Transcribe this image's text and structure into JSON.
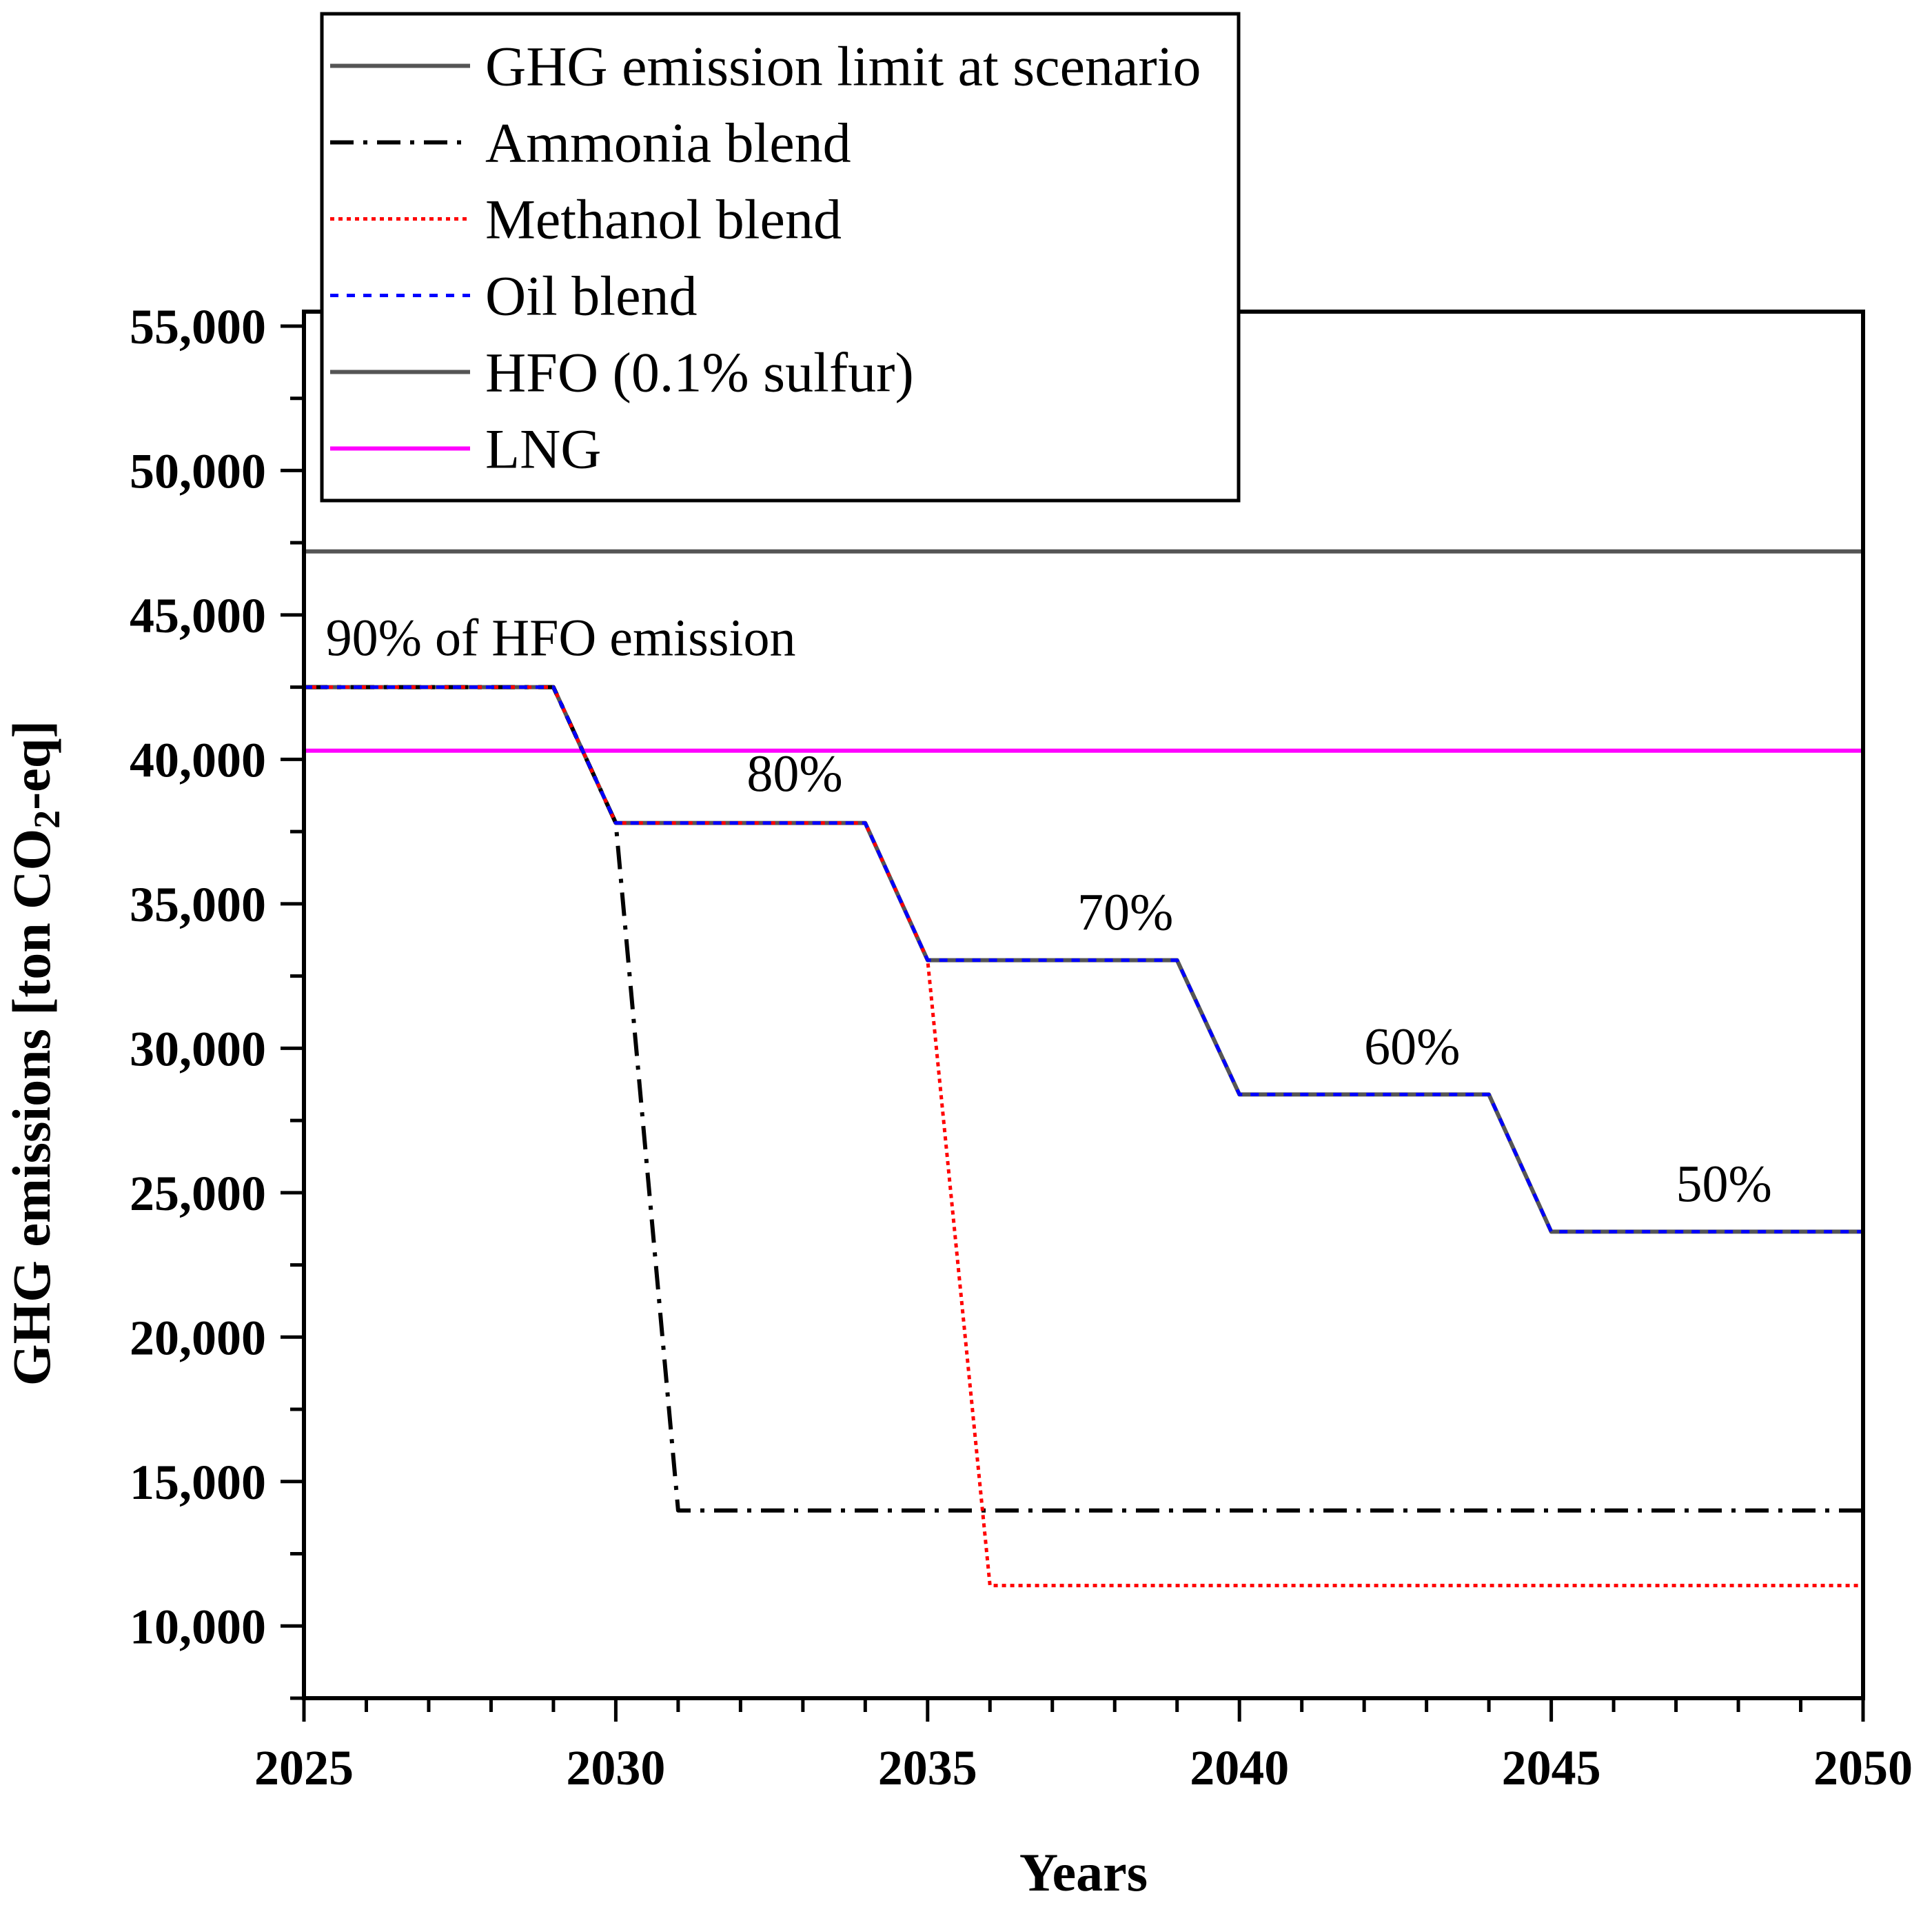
{
  "chart_data": {
    "type": "line",
    "title": "",
    "xlabel": "Years",
    "ylabel_parts": {
      "before": "GHG emissions [ton CO",
      "sub": "2",
      "after": "-eq]"
    },
    "xlim": [
      2025,
      2050
    ],
    "ylim": [
      7500,
      55500
    ],
    "x_ticks": [
      2025,
      2030,
      2035,
      2040,
      2045,
      2050
    ],
    "x_tick_labels": [
      "2025",
      "2030",
      "2035",
      "2040",
      "2045",
      "2050"
    ],
    "x_minor_step": 1,
    "y_ticks": [
      10000,
      15000,
      20000,
      25000,
      30000,
      35000,
      40000,
      45000,
      50000,
      55000
    ],
    "y_tick_labels": [
      "10,000",
      "15,000",
      "20,000",
      "25,000",
      "30,000",
      "35,000",
      "40,000",
      "45,000",
      "50,000",
      "55,000"
    ],
    "y_minor_step": 2500,
    "legend_position": "top-left",
    "series": [
      {
        "key": "ghg",
        "name": "GHG emission limit at scenario",
        "color": "#555555",
        "style": "solid",
        "x": [
          2025,
          2029,
          2030,
          2034,
          2035,
          2039,
          2040,
          2044,
          2045,
          2050
        ],
        "y": [
          42500,
          42500,
          37800,
          37800,
          33050,
          33050,
          28400,
          28400,
          23650,
          23650
        ]
      },
      {
        "key": "ammonia",
        "name": "Ammonia blend",
        "color": "#000000",
        "style": "dashdot",
        "x": [
          2025,
          2029,
          2030,
          2031,
          2050
        ],
        "y": [
          42500,
          42500,
          37800,
          14000,
          14000
        ]
      },
      {
        "key": "methanol",
        "name": "Methanol blend",
        "color": "#ff0000",
        "style": "dotted",
        "x": [
          2025,
          2029,
          2030,
          2034,
          2035,
          2036,
          2050
        ],
        "y": [
          42500,
          42500,
          37800,
          37800,
          33050,
          11400,
          11400
        ]
      },
      {
        "key": "oil",
        "name": "Oil blend",
        "color": "#0000ff",
        "style": "dashed",
        "x": [
          2025,
          2029,
          2030,
          2034,
          2035,
          2039,
          2040,
          2044,
          2045,
          2050
        ],
        "y": [
          42500,
          42500,
          37800,
          37800,
          33050,
          33050,
          28400,
          28400,
          23650,
          23650
        ]
      },
      {
        "key": "hfo",
        "name": "HFO (0.1% sulfur)",
        "color": "#555555",
        "style": "solid",
        "x": [
          2025,
          2050
        ],
        "y": [
          47200,
          47200
        ]
      },
      {
        "key": "lng",
        "name": "LNG",
        "color": "#ff00ff",
        "style": "solid",
        "x": [
          2025,
          2050
        ],
        "y": [
          40300,
          40300
        ]
      }
    ],
    "annotations": [
      {
        "text": "90% of HFO emission",
        "x": 2025.35,
        "y": 43600
      },
      {
        "text": "80%",
        "x": 2032.1,
        "y": 38900
      },
      {
        "text": "70%",
        "x": 2037.4,
        "y": 34100
      },
      {
        "text": "60%",
        "x": 2042.0,
        "y": 29450
      },
      {
        "text": "50%",
        "x": 2047.0,
        "y": 24700
      }
    ]
  }
}
